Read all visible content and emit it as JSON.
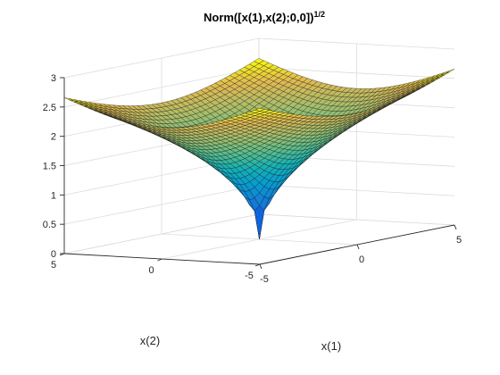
{
  "chart_data": {
    "type": "surface",
    "title": "Norm([x(1),x(2);0,0])",
    "title_superscript": "1/2",
    "xlabel": "x(1)",
    "ylabel": "x(2)",
    "zlabel": "",
    "xlim": [
      -5,
      5
    ],
    "ylim": [
      -5,
      5
    ],
    "zlim": [
      0,
      3
    ],
    "x_ticks": [
      "-5",
      "0",
      "5"
    ],
    "y_ticks": [
      "-5",
      "0",
      "5"
    ],
    "z_ticks": [
      "0",
      "0.5",
      "1",
      "1.5",
      "2",
      "2.5",
      "3"
    ],
    "z_tick_values": [
      0,
      0.5,
      1,
      1.5,
      2,
      2.5,
      3
    ],
    "grid": true,
    "colormap": "parula",
    "function": "z = (sqrt(x1^2 + x2^2))^(1/2)",
    "grid_points": 41,
    "sample_values": [
      {
        "x1": 0,
        "x2": 0,
        "z": 0
      },
      {
        "x1": 5,
        "x2": 0,
        "z": 2.236
      },
      {
        "x1": 0,
        "x2": 5,
        "z": 2.236
      },
      {
        "x1": 5,
        "x2": 5,
        "z": 2.659
      },
      {
        "x1": -5,
        "x2": -5,
        "z": 2.659
      }
    ]
  },
  "colors": {
    "edge": "#1a1a1a",
    "axis": "#262626",
    "grid": "#dcdcdc"
  }
}
